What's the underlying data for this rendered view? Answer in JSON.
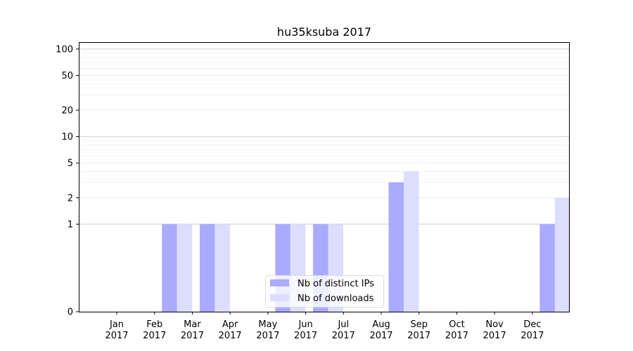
{
  "chart_data": {
    "type": "bar",
    "title": "hu35ksuba 2017",
    "xlabel": "",
    "ylabel": "",
    "y_scale": "symlog",
    "ylim": [
      0,
      120
    ],
    "categories": [
      [
        "Jan",
        "2017"
      ],
      [
        "Feb",
        "2017"
      ],
      [
        "Mar",
        "2017"
      ],
      [
        "Apr",
        "2017"
      ],
      [
        "May",
        "2017"
      ],
      [
        "Jun",
        "2017"
      ],
      [
        "Jul",
        "2017"
      ],
      [
        "Aug",
        "2017"
      ],
      [
        "Sep",
        "2017"
      ],
      [
        "Oct",
        "2017"
      ],
      [
        "Nov",
        "2017"
      ],
      [
        "Dec",
        "2017"
      ]
    ],
    "y_ticks": [
      0,
      1,
      2,
      5,
      10,
      20,
      50,
      100
    ],
    "y_tick_labels": [
      "0",
      "1",
      "2",
      "5",
      "10",
      "20",
      "50",
      "100"
    ],
    "series": [
      {
        "name": "Nb of distinct IPs",
        "color": "#aaaaff",
        "values": [
          0,
          1,
          1,
          0,
          1,
          1,
          0,
          3,
          0,
          0,
          0,
          1
        ]
      },
      {
        "name": "Nb of downloads",
        "color": "#ddddff",
        "values": [
          0,
          1,
          1,
          0,
          1,
          1,
          0,
          4,
          0,
          0,
          0,
          2
        ]
      }
    ],
    "legend": "lower-center",
    "grid": true
  }
}
